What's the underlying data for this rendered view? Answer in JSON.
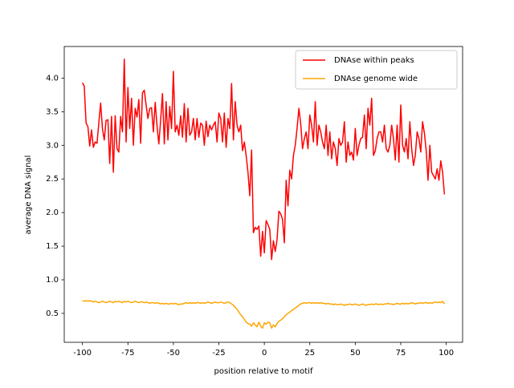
{
  "chart_data": {
    "type": "line",
    "xlabel": "position relative to motif",
    "ylabel": "average DNA signal",
    "x": [
      -100,
      -99,
      -98,
      -97,
      -96,
      -95,
      -94,
      -93,
      -92,
      -91,
      -90,
      -89,
      -88,
      -87,
      -86,
      -85,
      -84,
      -83,
      -82,
      -81,
      -80,
      -79,
      -78,
      -77,
      -76,
      -75,
      -74,
      -73,
      -72,
      -71,
      -70,
      -69,
      -68,
      -67,
      -66,
      -65,
      -64,
      -63,
      -62,
      -61,
      -60,
      -59,
      -58,
      -57,
      -56,
      -55,
      -54,
      -53,
      -52,
      -51,
      -50,
      -49,
      -48,
      -47,
      -46,
      -45,
      -44,
      -43,
      -42,
      -41,
      -40,
      -39,
      -38,
      -37,
      -36,
      -35,
      -34,
      -33,
      -32,
      -31,
      -30,
      -29,
      -28,
      -27,
      -26,
      -25,
      -24,
      -23,
      -22,
      -21,
      -20,
      -19,
      -18,
      -17,
      -16,
      -15,
      -14,
      -13,
      -12,
      -11,
      -10,
      -9,
      -8,
      -7,
      -6,
      -5,
      -4,
      -3,
      -2,
      -1,
      0,
      1,
      2,
      3,
      4,
      5,
      6,
      7,
      8,
      9,
      10,
      11,
      12,
      13,
      14,
      15,
      16,
      17,
      18,
      19,
      20,
      21,
      22,
      23,
      24,
      25,
      26,
      27,
      28,
      29,
      30,
      31,
      32,
      33,
      34,
      35,
      36,
      37,
      38,
      39,
      40,
      41,
      42,
      43,
      44,
      45,
      46,
      47,
      48,
      49,
      50,
      51,
      52,
      53,
      54,
      55,
      56,
      57,
      58,
      59,
      60,
      61,
      62,
      63,
      64,
      65,
      66,
      67,
      68,
      69,
      70,
      71,
      72,
      73,
      74,
      75,
      76,
      77,
      78,
      79,
      80,
      81,
      82,
      83,
      84,
      85,
      86,
      87,
      88,
      89,
      90,
      91,
      92,
      93,
      94,
      95,
      96,
      97,
      98,
      99
    ],
    "series": [
      {
        "name": "DNAse within peaks",
        "color": "#ff0000",
        "values": [
          3.93,
          3.88,
          3.33,
          3.28,
          2.99,
          3.23,
          2.97,
          3.05,
          3.03,
          3.33,
          3.63,
          3.25,
          3.08,
          3.37,
          3.38,
          2.73,
          3.43,
          2.6,
          3.44,
          2.95,
          2.9,
          3.43,
          3.2,
          4.28,
          3.05,
          3.86,
          3.25,
          3.7,
          3.0,
          3.55,
          3.42,
          3.68,
          3.03,
          3.78,
          3.82,
          3.6,
          3.4,
          3.55,
          3.56,
          3.2,
          3.64,
          3.29,
          3.02,
          3.38,
          3.77,
          3.02,
          3.65,
          3.08,
          3.58,
          3.25,
          4.1,
          3.2,
          3.3,
          3.15,
          3.44,
          3.12,
          3.62,
          3.05,
          3.55,
          3.15,
          3.2,
          3.4,
          3.08,
          3.4,
          3.12,
          3.33,
          3.3,
          3.0,
          3.36,
          3.13,
          3.3,
          3.23,
          3.3,
          3.35,
          3.05,
          3.48,
          3.4,
          3.05,
          3.48,
          2.97,
          3.4,
          3.25,
          3.92,
          3.08,
          3.65,
          3.3,
          3.2,
          3.3,
          2.92,
          3.05,
          2.85,
          2.6,
          2.25,
          2.93,
          1.7,
          1.78,
          1.75,
          1.8,
          1.35,
          1.72,
          1.4,
          1.88,
          1.82,
          1.75,
          1.3,
          1.58,
          1.42,
          1.6,
          2.02,
          1.98,
          1.9,
          1.55,
          2.48,
          2.1,
          2.63,
          2.5,
          2.85,
          3.0,
          3.25,
          3.55,
          3.32,
          2.95,
          3.1,
          3.2,
          2.95,
          3.45,
          3.3,
          3.05,
          3.65,
          3.0,
          3.3,
          3.2,
          3.05,
          2.95,
          3.3,
          2.85,
          3.2,
          2.8,
          3.05,
          2.95,
          2.7,
          3.1,
          3.0,
          3.05,
          3.35,
          2.75,
          3.05,
          2.85,
          2.9,
          2.78,
          3.25,
          2.85,
          3.0,
          3.1,
          3.12,
          3.45,
          2.95,
          3.55,
          3.3,
          3.7,
          2.85,
          2.92,
          3.1,
          3.2,
          3.2,
          3.05,
          3.3,
          2.95,
          2.9,
          3.0,
          3.3,
          3.1,
          2.78,
          3.3,
          2.75,
          3.6,
          3.0,
          2.9,
          3.1,
          2.8,
          3.35,
          2.95,
          2.7,
          2.85,
          3.2,
          3.1,
          2.9,
          3.35,
          3.18,
          2.92,
          2.48,
          3.0,
          2.6,
          2.55,
          2.5,
          2.65,
          2.48,
          2.77,
          2.6,
          2.27
        ]
      },
      {
        "name": "DNAse genome wide",
        "color": "#ffa500",
        "values": [
          0.69,
          0.68,
          0.69,
          0.68,
          0.69,
          0.68,
          0.67,
          0.68,
          0.67,
          0.66,
          0.67,
          0.68,
          0.67,
          0.66,
          0.67,
          0.68,
          0.67,
          0.66,
          0.68,
          0.67,
          0.68,
          0.67,
          0.66,
          0.68,
          0.67,
          0.68,
          0.67,
          0.66,
          0.67,
          0.68,
          0.67,
          0.66,
          0.67,
          0.67,
          0.66,
          0.67,
          0.66,
          0.65,
          0.66,
          0.66,
          0.65,
          0.66,
          0.65,
          0.64,
          0.65,
          0.64,
          0.65,
          0.64,
          0.64,
          0.65,
          0.64,
          0.65,
          0.64,
          0.63,
          0.64,
          0.64,
          0.65,
          0.66,
          0.65,
          0.66,
          0.65,
          0.66,
          0.65,
          0.66,
          0.66,
          0.65,
          0.66,
          0.65,
          0.66,
          0.67,
          0.66,
          0.65,
          0.66,
          0.67,
          0.66,
          0.66,
          0.67,
          0.66,
          0.65,
          0.66,
          0.67,
          0.66,
          0.64,
          0.62,
          0.59,
          0.56,
          0.52,
          0.48,
          0.45,
          0.41,
          0.37,
          0.35,
          0.34,
          0.31,
          0.36,
          0.33,
          0.3,
          0.37,
          0.31,
          0.28,
          0.36,
          0.34,
          0.37,
          0.36,
          0.28,
          0.33,
          0.3,
          0.35,
          0.38,
          0.4,
          0.42,
          0.45,
          0.48,
          0.5,
          0.52,
          0.54,
          0.56,
          0.58,
          0.6,
          0.62,
          0.64,
          0.65,
          0.66,
          0.65,
          0.66,
          0.66,
          0.65,
          0.66,
          0.65,
          0.66,
          0.65,
          0.66,
          0.65,
          0.65,
          0.64,
          0.65,
          0.64,
          0.64,
          0.63,
          0.64,
          0.63,
          0.63,
          0.64,
          0.63,
          0.62,
          0.63,
          0.63,
          0.64,
          0.63,
          0.63,
          0.64,
          0.63,
          0.62,
          0.63,
          0.64,
          0.63,
          0.62,
          0.63,
          0.63,
          0.64,
          0.63,
          0.64,
          0.64,
          0.63,
          0.64,
          0.63,
          0.64,
          0.64,
          0.65,
          0.64,
          0.64,
          0.63,
          0.64,
          0.65,
          0.64,
          0.64,
          0.65,
          0.64,
          0.65,
          0.64,
          0.65,
          0.66,
          0.65,
          0.64,
          0.65,
          0.65,
          0.66,
          0.65,
          0.66,
          0.66,
          0.65,
          0.66,
          0.65,
          0.66,
          0.67,
          0.66,
          0.67,
          0.66,
          0.68,
          0.64
        ]
      }
    ],
    "xlim": [
      -110,
      109
    ],
    "ylim": [
      0.07,
      4.47
    ],
    "xticks": [
      -100,
      -75,
      -50,
      -25,
      0,
      25,
      50,
      75,
      100
    ],
    "yticks": [
      0.5,
      {
        "value": 1,
        "label": "1.0"
      },
      1.5,
      {
        "value": 2,
        "label": "2.0"
      },
      2.5,
      {
        "value": 3,
        "label": "3.0"
      },
      3.5,
      {
        "value": 4,
        "label": "4.0"
      }
    ],
    "grid": false,
    "legend": "upper right"
  }
}
